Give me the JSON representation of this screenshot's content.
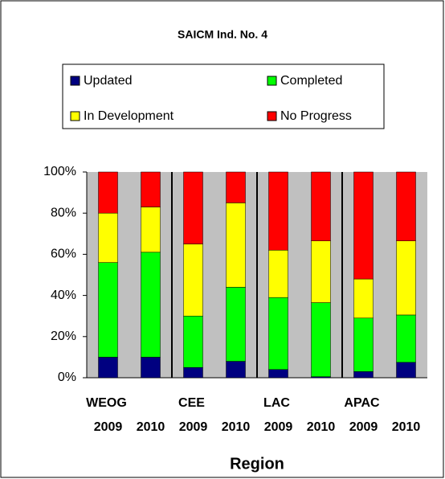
{
  "chart_data": {
    "type": "stacked_bar",
    "title": "SAICM Ind. No. 4",
    "groups": [
      "WEOG",
      "CEE",
      "LAC",
      "APAC"
    ],
    "categories": [
      "2009",
      "2010",
      "2009",
      "2010",
      "2009",
      "2010",
      "2009",
      "2010"
    ],
    "series": [
      {
        "name": "Updated",
        "color": "#000080",
        "values": [
          10,
          10,
          5,
          8,
          4,
          0.5,
          3,
          7.5
        ]
      },
      {
        "name": "Completed",
        "color": "#00ff00",
        "values": [
          46,
          51,
          25,
          36,
          35,
          36,
          26,
          23
        ]
      },
      {
        "name": "In Development",
        "color": "#ffff00",
        "values": [
          24,
          22,
          35,
          41,
          23,
          30,
          19,
          36
        ]
      },
      {
        "name": "No Progress",
        "color": "#ff0000",
        "values": [
          20,
          17,
          35,
          15,
          38,
          33.5,
          52,
          33.5
        ]
      }
    ],
    "ylim": [
      0,
      100
    ],
    "yticks": [
      {
        "value": 0,
        "label": "0%"
      },
      {
        "value": 20,
        "label": "20%"
      },
      {
        "value": 40,
        "label": "40%"
      },
      {
        "value": 60,
        "label": "60%"
      },
      {
        "value": 80,
        "label": "80%"
      },
      {
        "value": 100,
        "label": "100%"
      }
    ],
    "xlabel": "Region",
    "grid": false
  }
}
